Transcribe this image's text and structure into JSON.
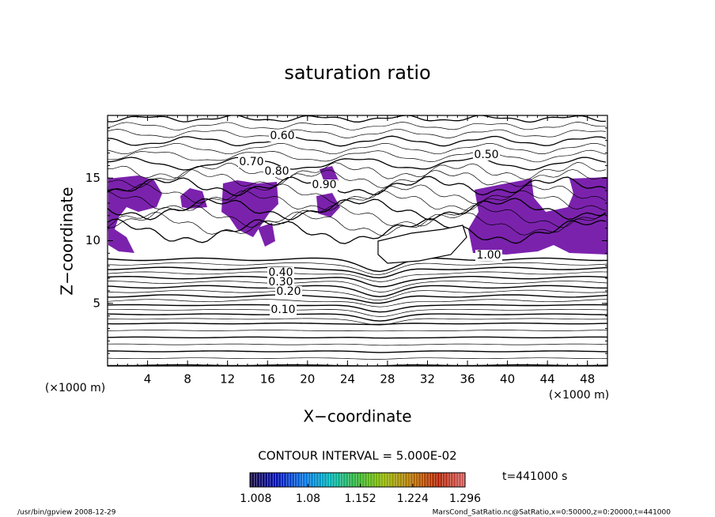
{
  "chart_data": {
    "type": "contour",
    "title": "saturation ratio",
    "x_label": "X−coordinate",
    "y_label": "Z−coordinate",
    "x_unit": "(×1000 m)",
    "xlim": [
      0,
      50
    ],
    "ylim": [
      0,
      20
    ],
    "xticks": [
      4,
      8,
      12,
      16,
      20,
      24,
      28,
      32,
      36,
      40,
      44,
      48
    ],
    "yticks": [
      5,
      10,
      15
    ],
    "contour_interval_text": "CONTOUR INTERVAL = 5.000E-02",
    "contour_labels": [
      "0.60",
      "0.70",
      "0.80",
      "0.50",
      "0.90",
      "1.00",
      "0.40",
      "0.30",
      "0.20",
      "0.10"
    ],
    "fill_color": "#7b22ad",
    "line_color": "#000000",
    "colorbar": {
      "lim": [
        1.0,
        1.296
      ],
      "ticks": [
        1.008,
        1.08,
        1.152,
        1.224,
        1.296
      ],
      "colors": [
        "#14063c",
        "#0010b0",
        "#0070e0",
        "#00b0b0",
        "#30b030",
        "#90b000",
        "#b07000",
        "#b02000",
        "#d06060"
      ]
    },
    "time_text": "t=441000 s",
    "footer_left": "/usr/bin/gpview   2008-12-29",
    "footer_right": "MarsCond_SatRatio.nc@SatRatio,x=0:50000,z=0:20000,t=441000"
  }
}
